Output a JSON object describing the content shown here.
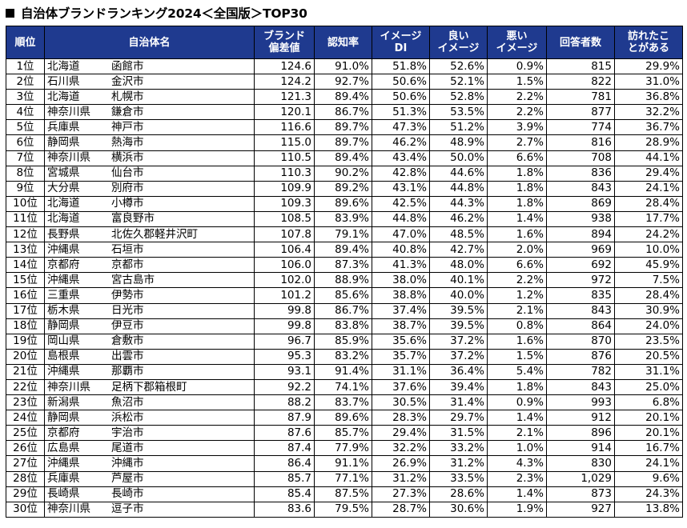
{
  "title": "自治体ブランドランキング2024＜全国版＞TOP30",
  "headers": {
    "rank": "順位",
    "municipality": "自治体名",
    "brand_score": [
      "ブランド",
      "偏差値"
    ],
    "awareness": "認知率",
    "image_di": [
      "イメージ",
      "DI"
    ],
    "good_image": [
      "良い",
      "イメージ"
    ],
    "bad_image": [
      "悪い",
      "イメージ"
    ],
    "respondents": "回答者数",
    "visited": [
      "訪れたこ",
      "とがある"
    ]
  },
  "rows": [
    {
      "rank": "1位",
      "pref": "北海道",
      "city": "函館市",
      "brand": "124.6",
      "aware": "91.0%",
      "di": "51.8%",
      "good": "52.6%",
      "bad": "0.9%",
      "resp": "815",
      "visited": "29.9%"
    },
    {
      "rank": "2位",
      "pref": "石川県",
      "city": "金沢市",
      "brand": "124.2",
      "aware": "92.7%",
      "di": "50.6%",
      "good": "52.1%",
      "bad": "1.5%",
      "resp": "822",
      "visited": "31.0%"
    },
    {
      "rank": "3位",
      "pref": "北海道",
      "city": "札幌市",
      "brand": "121.3",
      "aware": "89.4%",
      "di": "50.6%",
      "good": "52.8%",
      "bad": "2.2%",
      "resp": "781",
      "visited": "36.8%"
    },
    {
      "rank": "4位",
      "pref": "神奈川県",
      "city": "鎌倉市",
      "brand": "120.1",
      "aware": "86.7%",
      "di": "51.3%",
      "good": "53.5%",
      "bad": "2.2%",
      "resp": "877",
      "visited": "32.2%"
    },
    {
      "rank": "5位",
      "pref": "兵庫県",
      "city": "神戸市",
      "brand": "116.6",
      "aware": "89.7%",
      "di": "47.3%",
      "good": "51.2%",
      "bad": "3.9%",
      "resp": "774",
      "visited": "36.7%"
    },
    {
      "rank": "6位",
      "pref": "静岡県",
      "city": "熱海市",
      "brand": "115.0",
      "aware": "89.7%",
      "di": "46.2%",
      "good": "48.9%",
      "bad": "2.7%",
      "resp": "816",
      "visited": "28.9%"
    },
    {
      "rank": "7位",
      "pref": "神奈川県",
      "city": "横浜市",
      "brand": "110.5",
      "aware": "89.4%",
      "di": "43.4%",
      "good": "50.0%",
      "bad": "6.6%",
      "resp": "708",
      "visited": "44.1%"
    },
    {
      "rank": "8位",
      "pref": "宮城県",
      "city": "仙台市",
      "brand": "110.3",
      "aware": "90.2%",
      "di": "42.8%",
      "good": "44.6%",
      "bad": "1.8%",
      "resp": "836",
      "visited": "29.4%"
    },
    {
      "rank": "9位",
      "pref": "大分県",
      "city": "別府市",
      "brand": "109.9",
      "aware": "89.2%",
      "di": "43.1%",
      "good": "44.8%",
      "bad": "1.8%",
      "resp": "843",
      "visited": "24.1%"
    },
    {
      "rank": "10位",
      "pref": "北海道",
      "city": "小樽市",
      "brand": "109.3",
      "aware": "89.6%",
      "di": "42.5%",
      "good": "44.3%",
      "bad": "1.8%",
      "resp": "869",
      "visited": "28.4%"
    },
    {
      "rank": "11位",
      "pref": "北海道",
      "city": "富良野市",
      "brand": "108.5",
      "aware": "83.9%",
      "di": "44.8%",
      "good": "46.2%",
      "bad": "1.4%",
      "resp": "938",
      "visited": "17.7%"
    },
    {
      "rank": "12位",
      "pref": "長野県",
      "city": "北佐久郡軽井沢町",
      "brand": "107.8",
      "aware": "79.1%",
      "di": "47.0%",
      "good": "48.5%",
      "bad": "1.6%",
      "resp": "894",
      "visited": "24.2%"
    },
    {
      "rank": "13位",
      "pref": "沖縄県",
      "city": "石垣市",
      "brand": "106.4",
      "aware": "89.4%",
      "di": "40.8%",
      "good": "42.7%",
      "bad": "2.0%",
      "resp": "969",
      "visited": "10.0%"
    },
    {
      "rank": "14位",
      "pref": "京都府",
      "city": "京都市",
      "brand": "106.0",
      "aware": "87.3%",
      "di": "41.3%",
      "good": "48.0%",
      "bad": "6.6%",
      "resp": "692",
      "visited": "45.9%"
    },
    {
      "rank": "15位",
      "pref": "沖縄県",
      "city": "宮古島市",
      "brand": "102.0",
      "aware": "88.9%",
      "di": "38.0%",
      "good": "40.1%",
      "bad": "2.2%",
      "resp": "972",
      "visited": "7.5%"
    },
    {
      "rank": "16位",
      "pref": "三重県",
      "city": "伊勢市",
      "brand": "101.2",
      "aware": "85.6%",
      "di": "38.8%",
      "good": "40.0%",
      "bad": "1.2%",
      "resp": "835",
      "visited": "28.4%"
    },
    {
      "rank": "17位",
      "pref": "栃木県",
      "city": "日光市",
      "brand": "99.8",
      "aware": "86.7%",
      "di": "37.4%",
      "good": "39.5%",
      "bad": "2.1%",
      "resp": "843",
      "visited": "30.9%"
    },
    {
      "rank": "18位",
      "pref": "静岡県",
      "city": "伊豆市",
      "brand": "99.8",
      "aware": "83.8%",
      "di": "38.7%",
      "good": "39.5%",
      "bad": "0.8%",
      "resp": "864",
      "visited": "24.0%"
    },
    {
      "rank": "19位",
      "pref": "岡山県",
      "city": "倉敷市",
      "brand": "96.7",
      "aware": "85.9%",
      "di": "35.6%",
      "good": "37.2%",
      "bad": "1.6%",
      "resp": "870",
      "visited": "23.5%"
    },
    {
      "rank": "20位",
      "pref": "島根県",
      "city": "出雲市",
      "brand": "95.3",
      "aware": "83.2%",
      "di": "35.7%",
      "good": "37.2%",
      "bad": "1.5%",
      "resp": "876",
      "visited": "20.5%"
    },
    {
      "rank": "21位",
      "pref": "沖縄県",
      "city": "那覇市",
      "brand": "93.1",
      "aware": "91.4%",
      "di": "31.1%",
      "good": "36.4%",
      "bad": "5.4%",
      "resp": "782",
      "visited": "31.1%"
    },
    {
      "rank": "22位",
      "pref": "神奈川県",
      "city": "足柄下郡箱根町",
      "brand": "92.2",
      "aware": "74.1%",
      "di": "37.6%",
      "good": "39.4%",
      "bad": "1.8%",
      "resp": "843",
      "visited": "25.0%"
    },
    {
      "rank": "23位",
      "pref": "新潟県",
      "city": "魚沼市",
      "brand": "88.2",
      "aware": "83.7%",
      "di": "30.5%",
      "good": "31.4%",
      "bad": "0.9%",
      "resp": "993",
      "visited": "6.8%"
    },
    {
      "rank": "24位",
      "pref": "静岡県",
      "city": "浜松市",
      "brand": "87.9",
      "aware": "89.6%",
      "di": "28.3%",
      "good": "29.7%",
      "bad": "1.4%",
      "resp": "912",
      "visited": "20.1%"
    },
    {
      "rank": "25位",
      "pref": "京都府",
      "city": "宇治市",
      "brand": "87.6",
      "aware": "85.7%",
      "di": "29.4%",
      "good": "31.5%",
      "bad": "2.1%",
      "resp": "896",
      "visited": "20.1%"
    },
    {
      "rank": "26位",
      "pref": "広島県",
      "city": "尾道市",
      "brand": "87.4",
      "aware": "77.9%",
      "di": "32.2%",
      "good": "33.2%",
      "bad": "1.0%",
      "resp": "914",
      "visited": "16.7%"
    },
    {
      "rank": "27位",
      "pref": "沖縄県",
      "city": "沖縄市",
      "brand": "86.4",
      "aware": "91.1%",
      "di": "26.9%",
      "good": "31.2%",
      "bad": "4.3%",
      "resp": "830",
      "visited": "24.1%"
    },
    {
      "rank": "28位",
      "pref": "兵庫県",
      "city": "芦屋市",
      "brand": "85.7",
      "aware": "77.1%",
      "di": "31.2%",
      "good": "33.5%",
      "bad": "2.3%",
      "resp": "1,029",
      "visited": "9.6%"
    },
    {
      "rank": "29位",
      "pref": "長崎県",
      "city": "長崎市",
      "brand": "85.4",
      "aware": "87.5%",
      "di": "27.3%",
      "good": "28.6%",
      "bad": "1.4%",
      "resp": "873",
      "visited": "24.3%"
    },
    {
      "rank": "30位",
      "pref": "神奈川県",
      "city": "逗子市",
      "brand": "83.6",
      "aware": "79.5%",
      "di": "28.7%",
      "good": "30.6%",
      "bad": "1.9%",
      "resp": "927",
      "visited": "13.8%"
    }
  ]
}
